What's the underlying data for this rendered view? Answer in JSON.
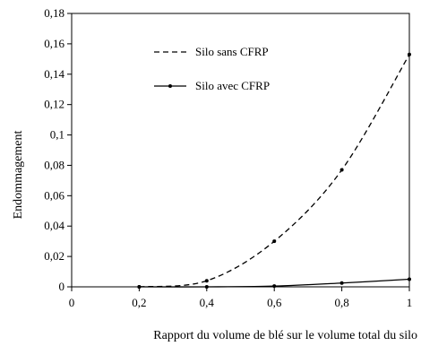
{
  "chart_data": {
    "type": "line",
    "title": "",
    "xlabel": "Rapport du volume de blé sur le volume total du silo",
    "ylabel": "Endommagement",
    "xlim": [
      0,
      1
    ],
    "ylim": [
      0,
      0.18
    ],
    "xticks": [
      0,
      0.2,
      0.4,
      0.6,
      0.8,
      1
    ],
    "yticks": [
      0,
      0.02,
      0.04,
      0.06,
      0.08,
      0.1,
      0.12,
      0.14,
      0.16,
      0.18
    ],
    "xtick_labels": [
      "0",
      "0,2",
      "0,4",
      "0,6",
      "0,8",
      "1"
    ],
    "ytick_labels": [
      "0",
      "0,02",
      "0,04",
      "0,06",
      "0,08",
      "0,1",
      "0,12",
      "0,14",
      "0,16",
      "0,18"
    ],
    "grid": false,
    "legend_position": "top-center",
    "series": [
      {
        "name": "Silo sans CFRP",
        "line_style": "dashed",
        "color": "#000000",
        "x": [
          0.2,
          0.4,
          0.6,
          0.8,
          1.0
        ],
        "y": [
          0.0,
          0.004,
          0.03,
          0.077,
          0.153
        ]
      },
      {
        "name": "Silo avec CFRP",
        "line_style": "solid",
        "color": "#000000",
        "x": [
          0.2,
          0.4,
          0.6,
          0.8,
          1.0
        ],
        "y": [
          0.0,
          0.0,
          0.0005,
          0.0025,
          0.005
        ]
      }
    ]
  }
}
